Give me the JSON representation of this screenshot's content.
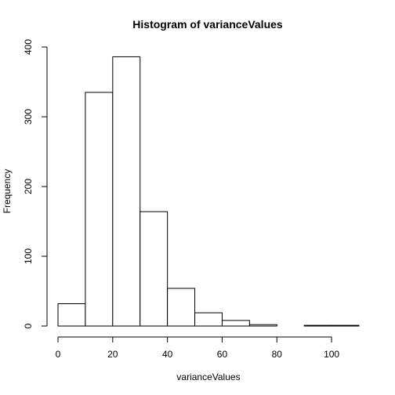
{
  "chart_data": {
    "type": "bar",
    "subtype": "histogram",
    "title": "Histogram of varianceValues",
    "xlabel": "varianceValues",
    "ylabel": "Frequency",
    "bins": [
      {
        "start": 0,
        "end": 10,
        "count": 32
      },
      {
        "start": 10,
        "end": 20,
        "count": 335
      },
      {
        "start": 20,
        "end": 30,
        "count": 386
      },
      {
        "start": 30,
        "end": 40,
        "count": 164
      },
      {
        "start": 40,
        "end": 50,
        "count": 54
      },
      {
        "start": 50,
        "end": 60,
        "count": 19
      },
      {
        "start": 60,
        "end": 70,
        "count": 8
      },
      {
        "start": 70,
        "end": 80,
        "count": 2
      },
      {
        "start": 80,
        "end": 90,
        "count": 0
      },
      {
        "start": 90,
        "end": 100,
        "count": 1
      },
      {
        "start": 100,
        "end": 110,
        "count": 1
      }
    ],
    "x_ticks": [
      0,
      20,
      40,
      60,
      80,
      100
    ],
    "x_tick_labels": [
      "0",
      "20",
      "40",
      "60",
      "80",
      "100"
    ],
    "y_ticks": [
      0,
      100,
      200,
      300,
      400
    ],
    "y_tick_labels": [
      "0",
      "100",
      "200",
      "300",
      "400"
    ],
    "xlim": [
      0,
      110
    ],
    "ylim": [
      0,
      400
    ],
    "grid": false,
    "bar_fill": "#ffffff",
    "bar_stroke": "#000000"
  }
}
